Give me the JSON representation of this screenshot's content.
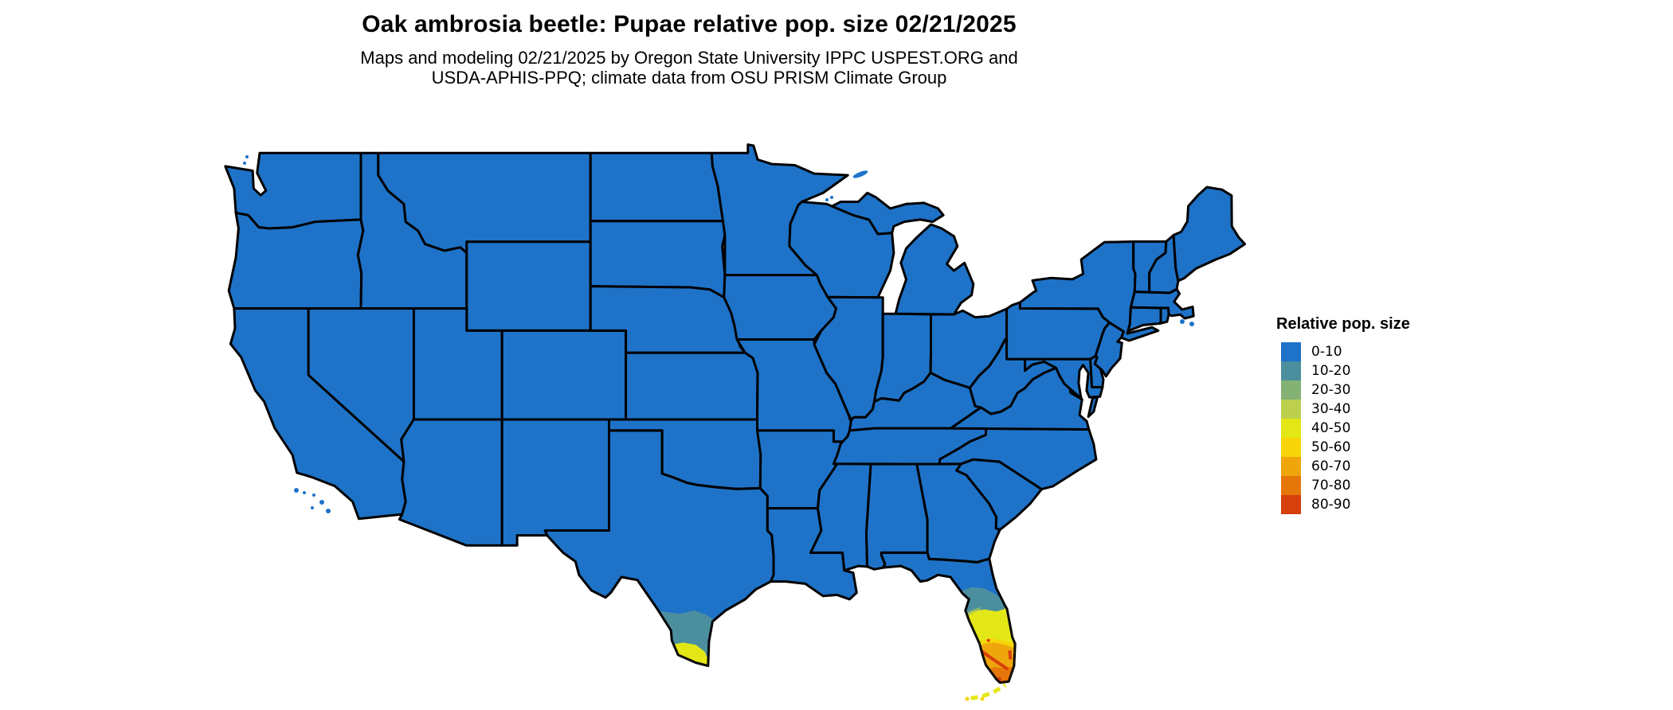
{
  "title": "Oak ambrosia beetle: Pupae relative pop. size 02/21/2025",
  "subtitle": {
    "line1": "Maps and modeling 02/21/2025 by Oregon State University IPPC USPEST.ORG and",
    "line2": "USDA-APHIS-PPQ; climate data from OSU PRISM Climate Group"
  },
  "legend": {
    "title": "Relative pop. size",
    "entries": [
      {
        "label": "0-10",
        "color": "#1e73c8"
      },
      {
        "label": "10-20",
        "color": "#4b8f9f"
      },
      {
        "label": "20-30",
        "color": "#84b274"
      },
      {
        "label": "30-40",
        "color": "#bcd04e"
      },
      {
        "label": "40-50",
        "color": "#e4e716"
      },
      {
        "label": "50-60",
        "color": "#f7d508"
      },
      {
        "label": "60-70",
        "color": "#efa60c"
      },
      {
        "label": "70-80",
        "color": "#e5760a"
      },
      {
        "label": "80-90",
        "color": "#d6400a"
      }
    ]
  },
  "map": {
    "base_color": "#1e73c8",
    "border_color": "#000000",
    "ocean_color": "#ffffff",
    "highlights": [
      {
        "area": "Contiguous US (most states)",
        "value_range": "0-10"
      },
      {
        "area": "South Texas (lower Rio Grande Valley)",
        "value_range": "10-20 with 40-50 at the southern tip"
      },
      {
        "area": "North-central Florida",
        "value_range": "10-20"
      },
      {
        "area": "Central Florida",
        "value_range": "40-60"
      },
      {
        "area": "South Florida",
        "value_range": "60-90 increasing southward"
      },
      {
        "area": "Florida Keys",
        "value_range": "40-60"
      }
    ]
  }
}
